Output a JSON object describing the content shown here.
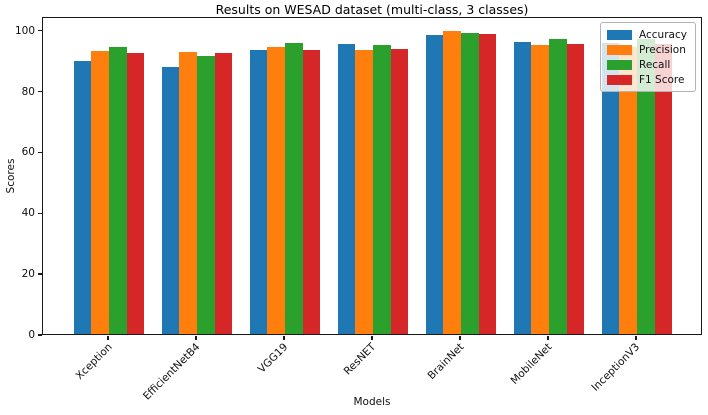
{
  "chart_data": {
    "type": "bar",
    "title": "Results on WESAD dataset (multi-class, 3 classes)",
    "xlabel": "Models",
    "ylabel": "Scores",
    "categories": [
      "Xception",
      "EfficientNetB4",
      "VGG19",
      "ResNET",
      "BrainNet",
      "MobileNet",
      "InceptionV3"
    ],
    "series": [
      {
        "name": "Accuracy",
        "color": "#1f77b4",
        "values": [
          89.8,
          87.7,
          93.4,
          95.2,
          98.3,
          95.8,
          95.6
        ]
      },
      {
        "name": "Precision",
        "color": "#ff7f0e",
        "values": [
          93.0,
          92.8,
          94.2,
          93.4,
          99.5,
          95.1,
          94.3
        ]
      },
      {
        "name": "Recall",
        "color": "#2ca02c",
        "values": [
          94.2,
          91.5,
          95.5,
          95.1,
          98.9,
          97.0,
          96.8
        ]
      },
      {
        "name": "F1 Score",
        "color": "#d62728",
        "values": [
          92.4,
          92.4,
          93.4,
          93.8,
          98.5,
          95.4,
          95.2
        ]
      }
    ],
    "yticks": [
      0,
      20,
      40,
      60,
      80,
      100
    ],
    "ylim": [
      0,
      104.5
    ],
    "grid": false,
    "legend_position": "upper right",
    "bar_group_width": 0.8,
    "background": "#ffffff",
    "spine_color": "#1a1a1a"
  }
}
